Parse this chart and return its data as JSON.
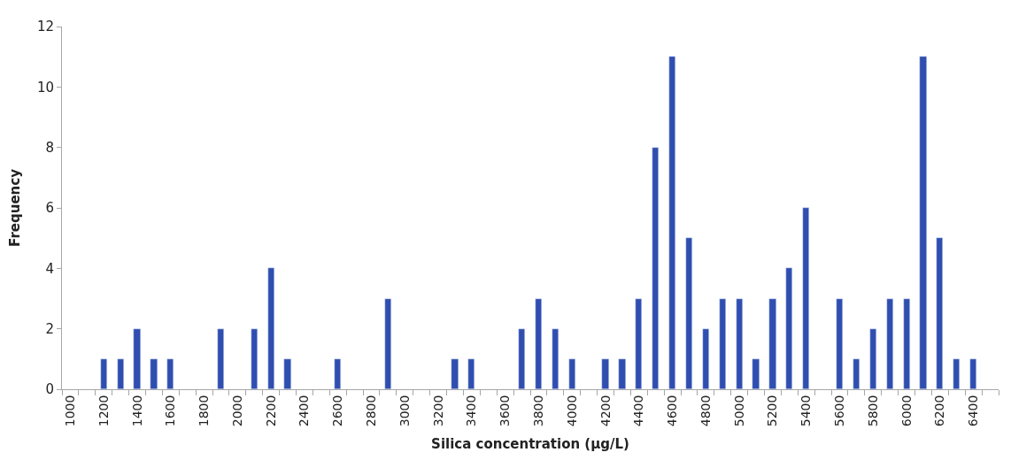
{
  "chart_data": {
    "type": "bar",
    "xlabel": "Silica concentration (µg/L)",
    "ylabel": "Frequency",
    "categories": [
      "1000",
      null,
      "1200",
      null,
      "1400",
      null,
      "1600",
      null,
      "1800",
      null,
      "2000",
      null,
      "2200",
      null,
      "2400",
      null,
      "2600",
      null,
      "2800",
      null,
      "3000",
      null,
      "3200",
      null,
      "3400",
      null,
      "3600",
      null,
      "3800",
      null,
      "4000",
      null,
      "4200",
      null,
      "4400",
      null,
      "4600",
      null,
      "4800",
      null,
      "5000",
      null,
      "5200",
      null,
      "5400",
      null,
      "5600",
      null,
      "5800",
      null,
      "6000",
      null,
      "6200",
      null,
      "6400",
      null
    ],
    "values": [
      null,
      null,
      1,
      1,
      2,
      1,
      1,
      null,
      null,
      2,
      null,
      2,
      4,
      1,
      null,
      null,
      1,
      null,
      null,
      3,
      null,
      null,
      null,
      1,
      1,
      null,
      null,
      2,
      3,
      2,
      1,
      null,
      1,
      1,
      3,
      8,
      11,
      5,
      2,
      3,
      3,
      1,
      3,
      4,
      6,
      null,
      3,
      1,
      2,
      3,
      3,
      11,
      5,
      1,
      1,
      null
    ],
    "color": "#2f4eb0",
    "ylim": [
      0,
      12
    ],
    "yticks": [
      0,
      2,
      4,
      6,
      8,
      10,
      12
    ]
  }
}
